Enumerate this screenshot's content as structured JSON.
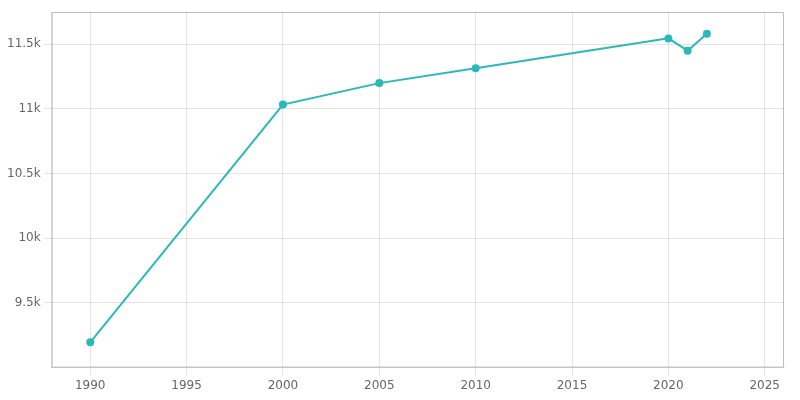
{
  "chart_data": {
    "type": "line",
    "x": [
      1990,
      2000,
      2005,
      2010,
      2020,
      2021,
      2022
    ],
    "values": [
      9196,
      11034,
      11200,
      11315,
      11546,
      11451,
      11581
    ],
    "color": "#2ab8b8",
    "marker": "o",
    "xlim": [
      1988,
      2026
    ],
    "ylim": [
      9000,
      11750
    ],
    "xticks": [
      1990,
      1995,
      2000,
      2005,
      2010,
      2015,
      2020,
      2025
    ],
    "yticks": [
      {
        "value": 9500,
        "label": "9.5k"
      },
      {
        "value": 10000,
        "label": "10k"
      },
      {
        "value": 10500,
        "label": "10.5k"
      },
      {
        "value": 11000,
        "label": "11k"
      },
      {
        "value": 11500,
        "label": "11.5k"
      }
    ],
    "grid": true
  }
}
